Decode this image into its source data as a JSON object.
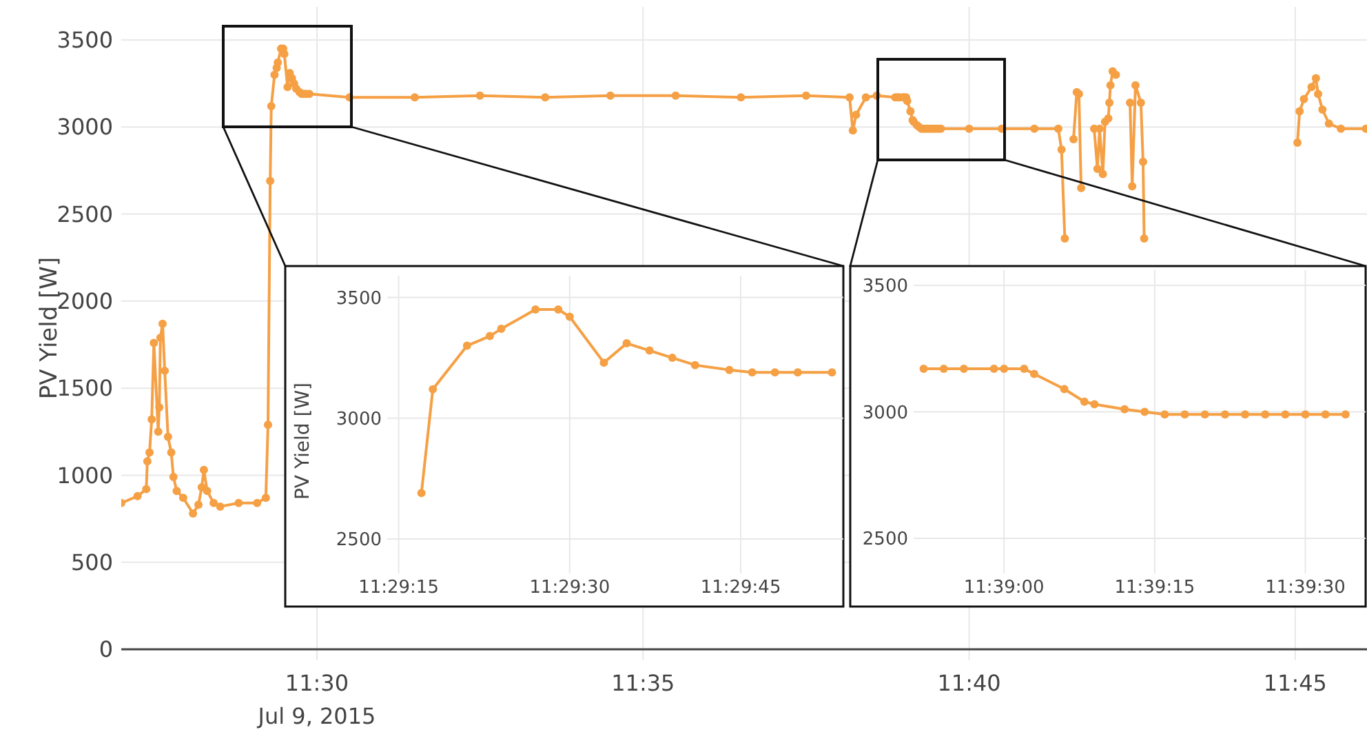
{
  "chart_data": [
    {
      "type": "line",
      "ylabel": "PV Yield [W]",
      "color": "#f5a045",
      "marker": "circle",
      "line_style": "solid",
      "grid": true,
      "annotations": [
        "Jul 9, 2015"
      ],
      "xlim": [
        "2015-07-09T11:27:00",
        "2015-07-09T11:46:06"
      ],
      "ylim": [
        0,
        3690
      ],
      "xticks": [
        {
          "value": "2015-07-09T11:30",
          "label": "11:30"
        },
        {
          "value": "2015-07-09T11:35",
          "label": "11:35"
        },
        {
          "value": "2015-07-09T11:40",
          "label": "11:40"
        },
        {
          "value": "2015-07-09T11:45",
          "label": "11:45"
        }
      ],
      "yticks": [
        0,
        500,
        1000,
        1500,
        2000,
        2500,
        3000,
        3500
      ],
      "x": [
        "2015-07-09T11:27:00",
        "2015-07-09T11:27:15",
        "2015-07-09T11:27:23",
        "2015-07-09T11:27:24",
        "2015-07-09T11:27:26",
        "2015-07-09T11:27:28",
        "2015-07-09T11:27:30",
        "2015-07-09T11:27:34",
        "2015-07-09T11:27:35",
        "2015-07-09T11:27:36",
        "2015-07-09T11:27:38",
        "2015-07-09T11:27:40",
        "2015-07-09T11:27:43",
        "2015-07-09T11:27:46",
        "2015-07-09T11:27:48",
        "2015-07-09T11:27:51",
        "2015-07-09T11:27:57",
        "2015-07-09T11:28:06",
        "2015-07-09T11:28:11",
        "2015-07-09T11:28:14",
        "2015-07-09T11:28:16",
        "2015-07-09T11:28:19",
        "2015-07-09T11:28:25",
        "2015-07-09T11:28:31",
        "2015-07-09T11:28:48",
        "2015-07-09T11:29:05",
        "2015-07-09T11:29:13",
        "2015-07-09T11:29:15",
        "2015-07-09T11:29:17",
        "2015-07-09T11:29:18",
        "2015-07-09T11:29:21",
        "2015-07-09T11:29:23",
        "2015-07-09T11:29:24",
        "2015-07-09T11:29:27",
        "2015-07-09T11:29:29",
        "2015-07-09T11:29:30",
        "2015-07-09T11:29:33",
        "2015-07-09T11:29:35",
        "2015-07-09T11:29:37",
        "2015-07-09T11:29:39",
        "2015-07-09T11:29:41",
        "2015-07-09T11:29:44",
        "2015-07-09T11:29:46",
        "2015-07-09T11:29:48",
        "2015-07-09T11:29:50",
        "2015-07-09T11:29:53",
        "2015-07-09T11:30:30",
        "2015-07-09T11:31:30",
        "2015-07-09T11:32:30",
        "2015-07-09T11:33:30",
        "2015-07-09T11:34:30",
        "2015-07-09T11:35:30",
        "2015-07-09T11:36:30",
        "2015-07-09T11:37:30",
        "2015-07-09T11:38:10",
        "2015-07-09T11:38:13",
        "2015-07-09T11:38:16",
        "2015-07-09T11:38:25",
        "2015-07-09T11:38:35",
        "2015-07-09T11:38:52",
        "2015-07-09T11:38:54",
        "2015-07-09T11:38:56",
        "2015-07-09T11:38:59",
        "2015-07-09T11:39:00",
        "2015-07-09T11:39:02",
        "2015-07-09T11:39:03",
        "2015-07-09T11:39:06",
        "2015-07-09T11:39:08",
        "2015-07-09T11:39:09",
        "2015-07-09T11:39:12",
        "2015-07-09T11:39:14",
        "2015-07-09T11:39:16",
        "2015-07-09T11:39:18",
        "2015-07-09T11:39:20",
        "2015-07-09T11:39:22",
        "2015-07-09T11:39:24",
        "2015-07-09T11:39:26",
        "2015-07-09T11:39:28",
        "2015-07-09T11:39:30",
        "2015-07-09T11:39:32",
        "2015-07-09T11:39:34",
        "2015-07-09T11:40:00",
        "2015-07-09T11:40:30",
        "2015-07-09T11:41:00",
        "2015-07-09T11:41:22",
        "2015-07-09T11:41:25",
        "2015-07-09T11:41:28",
        "2015-07-09T11:41:32",
        "2015-07-09T11:41:36",
        "2015-07-09T11:41:39",
        "2015-07-09T11:41:41",
        "2015-07-09T11:41:43",
        "2015-07-09T11:41:49",
        "2015-07-09T11:41:55",
        "2015-07-09T11:41:58",
        "2015-07-09T11:42:00",
        "2015-07-09T11:42:03",
        "2015-07-09T11:42:05",
        "2015-07-09T11:42:08",
        "2015-07-09T11:42:09",
        "2015-07-09T11:42:10",
        "2015-07-09T11:42:12",
        "2015-07-09T11:42:15",
        "2015-07-09T11:42:22",
        "2015-07-09T11:42:28",
        "2015-07-09T11:42:30",
        "2015-07-09T11:42:33",
        "2015-07-09T11:42:38",
        "2015-07-09T11:42:40",
        "2015-07-09T11:42:41",
        "2015-07-09T11:43:50",
        "2015-07-09T11:45:02",
        "2015-07-09T11:45:04",
        "2015-07-09T11:45:08",
        "2015-07-09T11:45:15",
        "2015-07-09T11:45:19",
        "2015-07-09T11:45:21",
        "2015-07-09T11:45:25",
        "2015-07-09T11:45:31",
        "2015-07-09T11:45:42",
        "2015-07-09T11:46:05"
      ],
      "values": [
        840,
        880,
        920,
        1080,
        1130,
        1320,
        1760,
        1250,
        1390,
        1790,
        1870,
        1600,
        1220,
        1130,
        990,
        910,
        870,
        780,
        830,
        930,
        1030,
        910,
        840,
        820,
        840,
        840,
        870,
        1290,
        2690,
        3120,
        3300,
        3340,
        3370,
        3450,
        3450,
        3420,
        3230,
        3310,
        3280,
        3250,
        3220,
        3200,
        3190,
        3190,
        3190,
        3190,
        3170,
        3170,
        3180,
        3170,
        3180,
        3180,
        3170,
        3180,
        3170,
        2980,
        3070,
        3170,
        3180,
        3170,
        3170,
        3170,
        3170,
        3170,
        3170,
        3150,
        3090,
        3040,
        3030,
        3010,
        3000,
        2990,
        2990,
        2990,
        2990,
        2990,
        2990,
        2990,
        2990,
        2990,
        2990,
        2990,
        2990,
        2990,
        2990,
        2870,
        2360,
        null,
        2930,
        3200,
        3190,
        2650,
        null,
        2990,
        2760,
        2990,
        2730,
        3030,
        3050,
        3140,
        3240,
        3320,
        3300,
        null,
        3140,
        2660,
        3240,
        3140,
        2800,
        2360,
        null,
        2910,
        3090,
        3160,
        3230,
        3280,
        3190,
        3100,
        3020,
        2990,
        2990
      ]
    },
    {
      "type": "line",
      "ylabel": "PV Yield [W]",
      "color": "#f5a045",
      "marker": "circle",
      "line_style": "solid",
      "grid": true,
      "xlim": [
        "2015-07-09T11:29:14",
        "2015-07-09T11:29:54"
      ],
      "ylim": [
        2220,
        3590
      ],
      "xticks": [
        {
          "value": "2015-07-09T11:29:15",
          "label": "11:29:15"
        },
        {
          "value": "2015-07-09T11:29:30",
          "label": "11:29:30"
        },
        {
          "value": "2015-07-09T11:29:45",
          "label": "11:29:45"
        }
      ],
      "yticks": [
        2500,
        3000,
        3500
      ],
      "x": [
        "2015-07-09T11:29:17",
        "2015-07-09T11:29:18",
        "2015-07-09T11:29:21",
        "2015-07-09T11:29:23",
        "2015-07-09T11:29:24",
        "2015-07-09T11:29:27",
        "2015-07-09T11:29:29",
        "2015-07-09T11:29:30",
        "2015-07-09T11:29:33",
        "2015-07-09T11:29:35",
        "2015-07-09T11:29:37",
        "2015-07-09T11:29:39",
        "2015-07-09T11:29:41",
        "2015-07-09T11:29:44",
        "2015-07-09T11:29:46",
        "2015-07-09T11:29:48",
        "2015-07-09T11:29:50",
        "2015-07-09T11:29:53"
      ],
      "values": [
        2690,
        3120,
        3300,
        3340,
        3370,
        3450,
        3450,
        3420,
        3230,
        3310,
        3280,
        3250,
        3220,
        3200,
        3190,
        3190,
        3190,
        3190
      ]
    },
    {
      "type": "line",
      "color": "#f5a045",
      "marker": "circle",
      "line_style": "solid",
      "grid": true,
      "xlim": [
        "2015-07-09T11:38:51",
        "2015-07-09T11:39:36"
      ],
      "ylim": [
        2230,
        3560
      ],
      "xticks": [
        {
          "value": "2015-07-09T11:39:00",
          "label": "11:39:00"
        },
        {
          "value": "2015-07-09T11:39:15",
          "label": "11:39:15"
        },
        {
          "value": "2015-07-09T11:39:30",
          "label": "11:39:30"
        }
      ],
      "yticks": [
        2500,
        3000,
        3500
      ],
      "x": [
        "2015-07-09T11:38:52",
        "2015-07-09T11:38:54",
        "2015-07-09T11:38:56",
        "2015-07-09T11:38:59",
        "2015-07-09T11:39:00",
        "2015-07-09T11:39:02",
        "2015-07-09T11:39:03",
        "2015-07-09T11:39:06",
        "2015-07-09T11:39:08",
        "2015-07-09T11:39:09",
        "2015-07-09T11:39:12",
        "2015-07-09T11:39:14",
        "2015-07-09T11:39:16",
        "2015-07-09T11:39:18",
        "2015-07-09T11:39:20",
        "2015-07-09T11:39:22",
        "2015-07-09T11:39:24",
        "2015-07-09T11:39:26",
        "2015-07-09T11:39:28",
        "2015-07-09T11:39:30",
        "2015-07-09T11:39:32",
        "2015-07-09T11:39:34"
      ],
      "values": [
        3170,
        3170,
        3170,
        3170,
        3170,
        3170,
        3150,
        3090,
        3040,
        3030,
        3010,
        3000,
        2990,
        2990,
        2990,
        2990,
        2990,
        2990,
        2990,
        2990,
        2990,
        2990
      ]
    }
  ]
}
